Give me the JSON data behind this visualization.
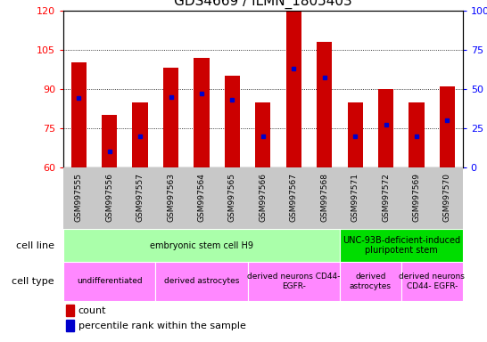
{
  "title": "GDS4669 / ILMN_1805403",
  "samples": [
    "GSM997555",
    "GSM997556",
    "GSM997557",
    "GSM997563",
    "GSM997564",
    "GSM997565",
    "GSM997566",
    "GSM997567",
    "GSM997568",
    "GSM997571",
    "GSM997572",
    "GSM997569",
    "GSM997570"
  ],
  "counts": [
    100,
    80,
    85,
    98,
    102,
    95,
    85,
    120,
    108,
    85,
    90,
    85,
    91
  ],
  "percentile_ranks": [
    44,
    10,
    20,
    45,
    47,
    43,
    20,
    63,
    57,
    20,
    27,
    20,
    30
  ],
  "ylim": [
    60,
    120
  ],
  "y2lim": [
    0,
    100
  ],
  "yticks": [
    60,
    75,
    90,
    105,
    120
  ],
  "y2ticks": [
    0,
    25,
    50,
    75,
    100
  ],
  "bar_color": "#cc0000",
  "dot_color": "#0000cc",
  "bar_bottom": 60,
  "cell_line_groups": [
    {
      "label": "embryonic stem cell H9",
      "start": 0,
      "end": 9,
      "color": "#aaffaa"
    },
    {
      "label": "UNC-93B-deficient-induced\npluripotent stem",
      "start": 9,
      "end": 13,
      "color": "#00dd00"
    }
  ],
  "cell_type_groups": [
    {
      "label": "undifferentiated",
      "start": 0,
      "end": 3,
      "color": "#ff88ff"
    },
    {
      "label": "derived astrocytes",
      "start": 3,
      "end": 6,
      "color": "#ff88ff"
    },
    {
      "label": "derived neurons CD44-\nEGFR-",
      "start": 6,
      "end": 9,
      "color": "#ff88ff"
    },
    {
      "label": "derived\nastrocytes",
      "start": 9,
      "end": 11,
      "color": "#ff88ff"
    },
    {
      "label": "derived neurons\nCD44- EGFR-",
      "start": 11,
      "end": 13,
      "color": "#ff88ff"
    }
  ],
  "legend_count_label": "count",
  "legend_pct_label": "percentile rank within the sample",
  "bar_width": 0.5,
  "grid_yticks": [
    75,
    90,
    105
  ],
  "title_fontsize": 11,
  "xtick_bg_color": "#c8c8c8"
}
